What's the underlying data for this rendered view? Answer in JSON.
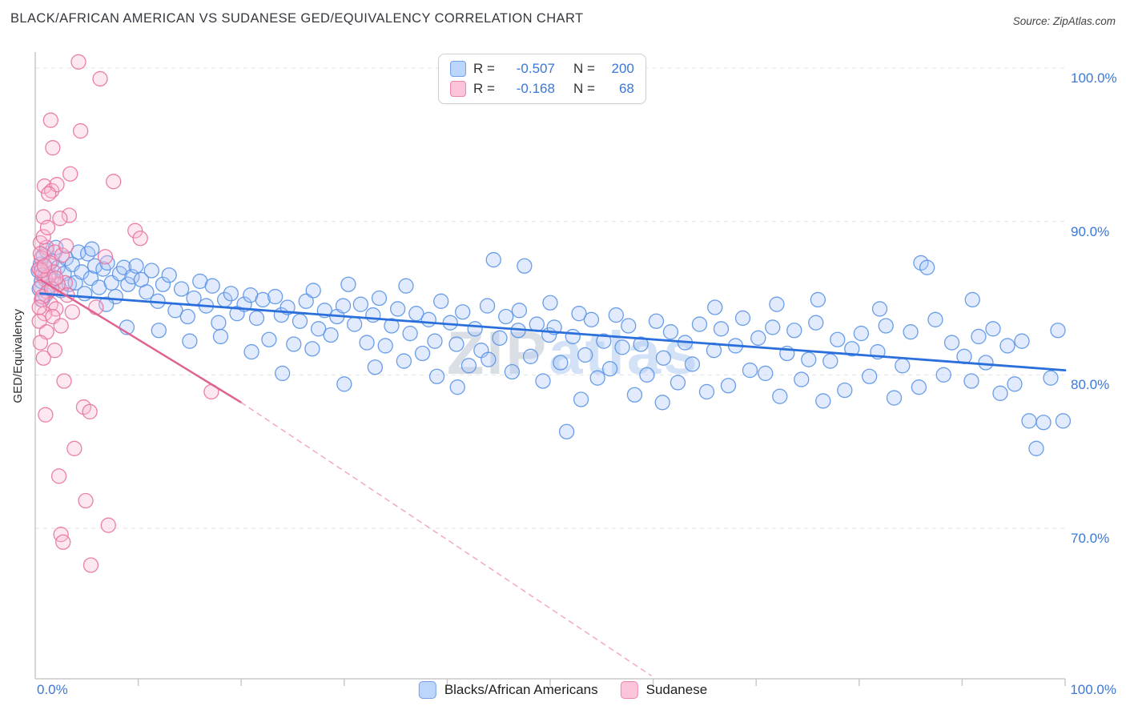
{
  "header": {
    "title": "BLACK/AFRICAN AMERICAN VS SUDANESE GED/EQUIVALENCY CORRELATION CHART",
    "source": "Source: ZipAtlas.com"
  },
  "legend_box": {
    "rows": [
      {
        "r_label": "R =",
        "r_value": "-0.507",
        "n_label": "N =",
        "n_value": "200"
      },
      {
        "r_label": "R =",
        "r_value": "-0.168",
        "n_label": "N =",
        "n_value": "68"
      }
    ]
  },
  "axes": {
    "y_title": "GED/Equivalency",
    "y_ticks": [
      "100.0%",
      "90.0%",
      "80.0%",
      "70.0%"
    ],
    "x_min_label": "0.0%",
    "x_max_label": "100.0%"
  },
  "bottom_legend": {
    "items": [
      {
        "label": "Blacks/African Americans"
      },
      {
        "label": "Sudanese"
      }
    ]
  },
  "watermark": {
    "zip": "ZIP",
    "atlas": "atlas"
  },
  "colors": {
    "axis_label_blue": "#3B78D8",
    "grid": "#E3E3E3",
    "blue_marker_fill": "#A8C7FA",
    "blue_marker_stroke": "#5B93E5",
    "blue_trend": "#2A6FDB",
    "pink_marker_fill": "#F9BBD4",
    "pink_marker_stroke": "#E8739F",
    "pink_trend": "#E0628F",
    "pink_trend_dashed": "#F4A9C4"
  },
  "chart_data": {
    "type": "scatter",
    "title": "BLACK/AFRICAN AMERICAN VS SUDANESE GED/EQUIVALENCY CORRELATION CHART",
    "xlabel": "",
    "ylabel": "GED/Equivalency",
    "x_range": [
      0,
      100
    ],
    "y_range": [
      60.2,
      100
    ],
    "y_gridlines": [
      100,
      90,
      80,
      70
    ],
    "x_tick_step": 10,
    "grid_color": "#E3E3E3",
    "axis_color": "#C9C9C9",
    "legend_position": "top-center",
    "series": [
      {
        "name": "Blacks/African Americans",
        "R": -0.507,
        "N": 200,
        "fill": "#A8C7FA",
        "stroke": "#5B93E5",
        "points": [
          [
            0.3,
            86.8
          ],
          [
            0.4,
            85.6
          ],
          [
            0.5,
            87.2
          ],
          [
            0.6,
            86.1
          ],
          [
            0.7,
            84.9
          ],
          [
            0.8,
            87.8
          ],
          [
            0.9,
            86.4
          ],
          [
            1.0,
            85.2
          ],
          [
            1.1,
            88.1
          ],
          [
            1.2,
            86.9
          ],
          [
            1.4,
            85.8
          ],
          [
            1.6,
            87.4
          ],
          [
            1.8,
            86.2
          ],
          [
            2.0,
            88.3
          ],
          [
            2.2,
            87.0
          ],
          [
            2.5,
            85.5
          ],
          [
            2.8,
            86.6
          ],
          [
            3.0,
            87.6
          ],
          [
            3.3,
            85.9
          ],
          [
            3.6,
            87.2
          ],
          [
            3.9,
            86.0
          ],
          [
            4.2,
            88.0
          ],
          [
            4.5,
            86.7
          ],
          [
            4.8,
            85.3
          ],
          [
            5.1,
            87.9
          ],
          [
            5.4,
            86.3
          ],
          [
            5.8,
            87.1
          ],
          [
            6.2,
            85.7
          ],
          [
            6.6,
            86.9
          ],
          [
            7.0,
            87.3
          ],
          [
            7.4,
            86.0
          ],
          [
            7.8,
            85.1
          ],
          [
            8.2,
            86.6
          ],
          [
            8.6,
            87.0
          ],
          [
            9.0,
            85.9
          ],
          [
            9.4,
            86.4
          ],
          [
            9.8,
            87.1
          ],
          [
            6.9,
            84.6
          ],
          [
            5.5,
            88.2
          ],
          [
            8.9,
            83.1
          ],
          [
            10.3,
            86.2
          ],
          [
            10.8,
            85.4
          ],
          [
            11.3,
            86.8
          ],
          [
            11.9,
            84.8
          ],
          [
            12.4,
            85.9
          ],
          [
            13.0,
            86.5
          ],
          [
            13.6,
            84.2
          ],
          [
            14.2,
            85.6
          ],
          [
            14.8,
            83.8
          ],
          [
            15.4,
            85.0
          ],
          [
            16.0,
            86.1
          ],
          [
            16.6,
            84.5
          ],
          [
            17.2,
            85.8
          ],
          [
            17.8,
            83.4
          ],
          [
            18.4,
            84.9
          ],
          [
            19.0,
            85.3
          ],
          [
            19.6,
            84.0
          ],
          [
            12.0,
            82.9
          ],
          [
            15.0,
            82.2
          ],
          [
            18.0,
            82.5
          ],
          [
            20.3,
            84.6
          ],
          [
            20.9,
            85.2
          ],
          [
            21.5,
            83.7
          ],
          [
            22.1,
            84.9
          ],
          [
            22.7,
            82.3
          ],
          [
            23.3,
            85.1
          ],
          [
            23.9,
            83.9
          ],
          [
            24.5,
            84.4
          ],
          [
            25.1,
            82.0
          ],
          [
            25.7,
            83.5
          ],
          [
            26.3,
            84.8
          ],
          [
            26.9,
            81.7
          ],
          [
            27.5,
            83.0
          ],
          [
            28.1,
            84.2
          ],
          [
            28.7,
            82.6
          ],
          [
            29.3,
            83.8
          ],
          [
            29.9,
            84.5
          ],
          [
            21.0,
            81.5
          ],
          [
            24.0,
            80.1
          ],
          [
            27.0,
            85.5
          ],
          [
            30.4,
            85.9
          ],
          [
            31.0,
            83.3
          ],
          [
            31.6,
            84.6
          ],
          [
            32.2,
            82.1
          ],
          [
            32.8,
            83.9
          ],
          [
            33.4,
            85.0
          ],
          [
            34.0,
            81.9
          ],
          [
            34.6,
            83.2
          ],
          [
            35.2,
            84.3
          ],
          [
            35.8,
            80.9
          ],
          [
            36.4,
            82.7
          ],
          [
            37.0,
            84.0
          ],
          [
            37.6,
            81.4
          ],
          [
            38.2,
            83.6
          ],
          [
            38.8,
            82.2
          ],
          [
            39.4,
            84.8
          ],
          [
            30.0,
            79.4
          ],
          [
            33.0,
            80.5
          ],
          [
            36.0,
            85.8
          ],
          [
            39.0,
            79.9
          ],
          [
            40.3,
            83.4
          ],
          [
            40.9,
            82.0
          ],
          [
            41.5,
            84.1
          ],
          [
            42.1,
            80.6
          ],
          [
            42.7,
            83.0
          ],
          [
            43.3,
            81.6
          ],
          [
            43.9,
            84.5
          ],
          [
            44.5,
            87.5
          ],
          [
            45.1,
            82.4
          ],
          [
            45.7,
            83.8
          ],
          [
            46.3,
            80.2
          ],
          [
            46.9,
            82.9
          ],
          [
            47.5,
            87.1
          ],
          [
            48.1,
            81.2
          ],
          [
            48.7,
            83.3
          ],
          [
            49.3,
            79.6
          ],
          [
            49.9,
            82.6
          ],
          [
            41.0,
            79.2
          ],
          [
            44.0,
            81.0
          ],
          [
            47.0,
            84.2
          ],
          [
            50.4,
            83.1
          ],
          [
            51.0,
            80.8
          ],
          [
            51.6,
            76.3
          ],
          [
            52.2,
            82.5
          ],
          [
            52.8,
            84.0
          ],
          [
            53.4,
            81.3
          ],
          [
            54.0,
            83.6
          ],
          [
            54.6,
            79.8
          ],
          [
            55.2,
            82.2
          ],
          [
            55.8,
            80.4
          ],
          [
            56.4,
            83.9
          ],
          [
            57.0,
            81.8
          ],
          [
            57.6,
            83.2
          ],
          [
            58.2,
            78.7
          ],
          [
            58.8,
            82.0
          ],
          [
            59.4,
            80.0
          ],
          [
            50.0,
            84.7
          ],
          [
            53.0,
            78.4
          ],
          [
            60.3,
            83.5
          ],
          [
            61.0,
            81.1
          ],
          [
            61.7,
            82.8
          ],
          [
            62.4,
            79.5
          ],
          [
            63.1,
            82.1
          ],
          [
            63.8,
            80.7
          ],
          [
            64.5,
            83.3
          ],
          [
            65.2,
            78.9
          ],
          [
            65.9,
            81.6
          ],
          [
            66.6,
            83.0
          ],
          [
            67.3,
            79.3
          ],
          [
            68.0,
            81.9
          ],
          [
            68.7,
            83.7
          ],
          [
            69.4,
            80.3
          ],
          [
            60.9,
            78.2
          ],
          [
            66.0,
            84.4
          ],
          [
            70.2,
            82.4
          ],
          [
            70.9,
            80.1
          ],
          [
            71.6,
            83.1
          ],
          [
            72.3,
            78.6
          ],
          [
            73.0,
            81.4
          ],
          [
            73.7,
            82.9
          ],
          [
            74.4,
            79.7
          ],
          [
            75.1,
            81.0
          ],
          [
            75.8,
            83.4
          ],
          [
            76.5,
            78.3
          ],
          [
            77.2,
            80.9
          ],
          [
            77.9,
            82.3
          ],
          [
            78.6,
            79.0
          ],
          [
            79.3,
            81.7
          ],
          [
            72.0,
            84.6
          ],
          [
            76.0,
            84.9
          ],
          [
            80.2,
            82.7
          ],
          [
            81.0,
            79.9
          ],
          [
            81.8,
            81.5
          ],
          [
            82.6,
            83.2
          ],
          [
            83.4,
            78.5
          ],
          [
            84.2,
            80.6
          ],
          [
            85.0,
            82.8
          ],
          [
            85.8,
            79.2
          ],
          [
            86.0,
            87.3
          ],
          [
            86.6,
            87.0
          ],
          [
            87.4,
            83.6
          ],
          [
            88.2,
            80.0
          ],
          [
            89.0,
            82.1
          ],
          [
            82.0,
            84.3
          ],
          [
            90.2,
            81.2
          ],
          [
            90.9,
            79.6
          ],
          [
            91.6,
            82.5
          ],
          [
            92.3,
            80.8
          ],
          [
            93.0,
            83.0
          ],
          [
            93.7,
            78.8
          ],
          [
            94.4,
            81.9
          ],
          [
            95.1,
            79.4
          ],
          [
            95.8,
            82.2
          ],
          [
            96.5,
            77.0
          ],
          [
            97.2,
            75.2
          ],
          [
            97.9,
            76.9
          ],
          [
            98.6,
            79.8
          ],
          [
            99.3,
            82.9
          ],
          [
            99.8,
            77.0
          ],
          [
            91.0,
            84.9
          ]
        ]
      },
      {
        "name": "Sudanese",
        "R": -0.168,
        "N": 68,
        "fill": "#F9BBD4",
        "stroke": "#E8739F",
        "points": [
          [
            4.2,
            100.4
          ],
          [
            6.3,
            99.3
          ],
          [
            1.5,
            96.6
          ],
          [
            4.4,
            95.9
          ],
          [
            1.7,
            94.8
          ],
          [
            3.4,
            93.1
          ],
          [
            7.6,
            92.6
          ],
          [
            0.9,
            92.3
          ],
          [
            1.6,
            92.0
          ],
          [
            2.1,
            92.4
          ],
          [
            1.3,
            91.8
          ],
          [
            3.3,
            90.4
          ],
          [
            0.8,
            90.3
          ],
          [
            2.4,
            90.2
          ],
          [
            9.7,
            89.4
          ],
          [
            0.5,
            88.6
          ],
          [
            1.1,
            88.3
          ],
          [
            1.9,
            88.0
          ],
          [
            0.6,
            87.6
          ],
          [
            1.4,
            87.3
          ],
          [
            2.6,
            87.8
          ],
          [
            0.4,
            86.9
          ],
          [
            0.7,
            86.5
          ],
          [
            1.0,
            86.2
          ],
          [
            1.8,
            86.7
          ],
          [
            2.9,
            86.0
          ],
          [
            0.5,
            85.7
          ],
          [
            1.2,
            85.4
          ],
          [
            2.2,
            85.9
          ],
          [
            3.1,
            85.2
          ],
          [
            0.6,
            84.9
          ],
          [
            1.5,
            84.6
          ],
          [
            2.0,
            84.3
          ],
          [
            0.9,
            84.0
          ],
          [
            1.7,
            83.8
          ],
          [
            2.5,
            83.2
          ],
          [
            3.6,
            84.1
          ],
          [
            0.4,
            83.5
          ],
          [
            1.1,
            82.8
          ],
          [
            5.9,
            84.4
          ],
          [
            0.8,
            81.1
          ],
          [
            2.8,
            79.6
          ],
          [
            4.7,
            77.9
          ],
          [
            5.3,
            77.6
          ],
          [
            1.0,
            77.4
          ],
          [
            3.8,
            75.2
          ],
          [
            2.3,
            73.4
          ],
          [
            4.9,
            71.8
          ],
          [
            7.1,
            70.2
          ],
          [
            2.5,
            69.6
          ],
          [
            2.7,
            69.1
          ],
          [
            5.4,
            67.6
          ],
          [
            17.1,
            78.9
          ],
          [
            10.2,
            88.9
          ],
          [
            0.5,
            87.9
          ],
          [
            0.7,
            85.1
          ],
          [
            1.3,
            86.4
          ],
          [
            0.6,
            86.8
          ],
          [
            0.9,
            87.1
          ],
          [
            1.6,
            85.6
          ],
          [
            2.0,
            86.3
          ],
          [
            0.4,
            84.4
          ],
          [
            3.0,
            88.4
          ],
          [
            0.8,
            89.0
          ],
          [
            1.2,
            89.6
          ],
          [
            6.8,
            87.7
          ],
          [
            0.5,
            82.1
          ],
          [
            1.9,
            81.6
          ]
        ]
      }
    ],
    "trend_lines": [
      {
        "series": "Blacks/African Americans",
        "color": "#2A6FDB",
        "width": 2.8,
        "dash": null,
        "x1": 0.5,
        "y1": 85.3,
        "x2": 100,
        "y2": 80.3
      },
      {
        "series": "Sudanese",
        "color": "#E0628F",
        "width": 2.5,
        "dash": null,
        "x1": 0.5,
        "y1": 86.2,
        "x2": 20,
        "y2": 78.2
      },
      {
        "series": "Sudanese extrapolated",
        "color": "#F4A9C4",
        "width": 1.5,
        "dash": "6,6",
        "x1": 20,
        "y1": 78.2,
        "x2": 59.8,
        "y2": 60.4
      }
    ]
  }
}
